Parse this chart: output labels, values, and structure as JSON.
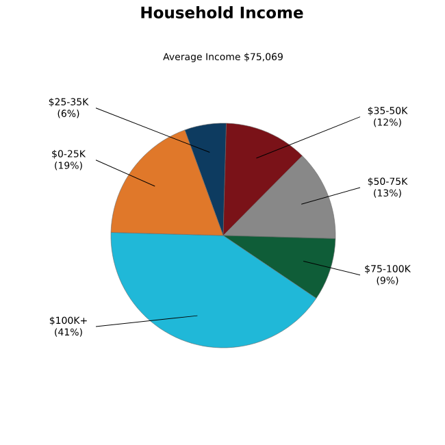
{
  "chart_data": {
    "type": "pie",
    "title": "Household Income",
    "subtitle": "Average Income  $75,069",
    "categories": [
      "$25-35K",
      "$35-50K",
      "$50-75K",
      "$75-100K",
      "$100K+",
      "$0-25K"
    ],
    "values": [
      6,
      12,
      13,
      9,
      41,
      19
    ],
    "value_labels": [
      "(6%)",
      "(12%)",
      "(13%)",
      "(9%)",
      "(41%)",
      "(19%)"
    ],
    "colors": [
      "#0d3b60",
      "#7a1218",
      "#888888",
      "#0f5d38",
      "#20b8d8",
      "#e0782a"
    ]
  }
}
